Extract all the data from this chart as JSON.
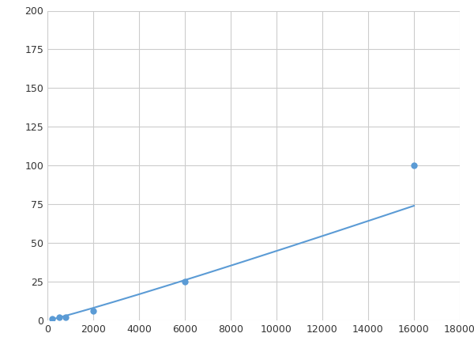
{
  "x": [
    200,
    500,
    800,
    2000,
    6000,
    16000
  ],
  "y": [
    1,
    2,
    2,
    6,
    25,
    100
  ],
  "line_color": "#5B9BD5",
  "marker_color": "#5B9BD5",
  "marker_size": 6,
  "line_width": 1.5,
  "xlim": [
    0,
    18000
  ],
  "ylim": [
    0,
    200
  ],
  "xticks": [
    0,
    2000,
    4000,
    6000,
    8000,
    10000,
    12000,
    14000,
    16000,
    18000
  ],
  "yticks": [
    0,
    25,
    50,
    75,
    100,
    125,
    150,
    175,
    200
  ],
  "grid_color": "#cccccc",
  "bg_color": "#ffffff",
  "fig_bg_color": "#ffffff"
}
